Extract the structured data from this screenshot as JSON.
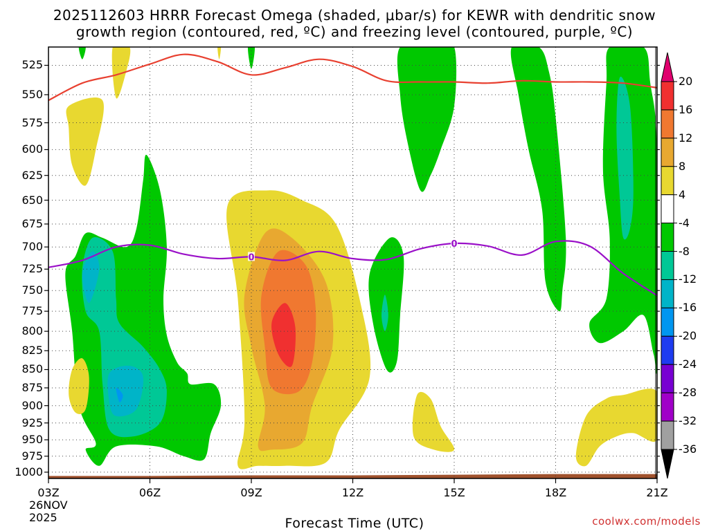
{
  "title": {
    "line1": "2025112603 HRRR Forecast Omega (shaded, μbar/s) for KEWR with dendritic snow",
    "line2": "growth region (contoured, red, ºC) and freezing level (contoured, purple, ºC)"
  },
  "credit": "coolwx.com/models",
  "chart_data": {
    "type": "heatmap",
    "title": "2025112603 HRRR Forecast Omega (shaded, μbar/s) for KEWR with dendritic snow growth region (contoured, red, ºC) and freezing level (contoured, purple, ºC)",
    "xlabel": "Forecast Time (UTC)",
    "ylabel": "",
    "x_ticks": [
      "03Z",
      "06Z",
      "09Z",
      "12Z",
      "15Z",
      "18Z",
      "21Z"
    ],
    "x_hours": [
      3,
      6,
      9,
      12,
      15,
      18,
      21
    ],
    "start_date": [
      "26NOV",
      "2025"
    ],
    "y_ticks": [
      525,
      550,
      575,
      600,
      625,
      650,
      675,
      700,
      725,
      750,
      775,
      800,
      825,
      850,
      875,
      900,
      925,
      950,
      975,
      1000
    ],
    "y_log": true,
    "ylim": [
      1010,
      510
    ],
    "xlim": [
      3,
      21
    ],
    "grid": true,
    "colorbar": {
      "levels": [
        "20",
        "16",
        "12",
        "8",
        "4",
        "-4",
        "-8",
        "-12",
        "-16",
        "-20",
        "-24",
        "-28",
        "-32",
        "-36"
      ],
      "colors": [
        "#e0006e",
        "#f03030",
        "#f07830",
        "#e8a830",
        "#e8d830",
        "#ffffff",
        "#00c800",
        "#00c896",
        "#00b4c8",
        "#0096f0",
        "#1e3cf0",
        "#7800d2",
        "#a000c8",
        "#a0a0a0",
        "#000000"
      ]
    },
    "omega_regions": [
      {
        "level": "4",
        "color": "#e8d830",
        "points": [
          [
            8.3,
            655
          ],
          [
            9.5,
            640
          ],
          [
            10.5,
            650
          ],
          [
            11.5,
            675
          ],
          [
            12.2,
            760
          ],
          [
            12.5,
            860
          ],
          [
            11.6,
            935
          ],
          [
            11.2,
            985
          ],
          [
            10.0,
            990
          ],
          [
            9.2,
            990
          ],
          [
            8.6,
            990
          ],
          [
            8.8,
            920
          ],
          [
            8.6,
            760
          ]
        ]
      },
      {
        "level": "8",
        "color": "#e8a830",
        "points": [
          [
            8.8,
            755
          ],
          [
            9.4,
            685
          ],
          [
            10.2,
            690
          ],
          [
            11.2,
            740
          ],
          [
            11.4,
            820
          ],
          [
            10.8,
            900
          ],
          [
            10.5,
            955
          ],
          [
            9.6,
            965
          ],
          [
            9.2,
            960
          ],
          [
            9.4,
            900
          ],
          [
            9.0,
            820
          ]
        ]
      },
      {
        "level": "12",
        "color": "#f07830",
        "points": [
          [
            9.3,
            755
          ],
          [
            9.8,
            705
          ],
          [
            10.6,
            720
          ],
          [
            10.9,
            770
          ],
          [
            10.8,
            840
          ],
          [
            10.4,
            880
          ],
          [
            9.6,
            875
          ],
          [
            9.4,
            820
          ]
        ]
      },
      {
        "level": "16",
        "color": "#f03030",
        "points": [
          [
            9.6,
            790
          ],
          [
            10.0,
            765
          ],
          [
            10.3,
            795
          ],
          [
            10.2,
            845
          ],
          [
            9.8,
            830
          ]
        ]
      },
      {
        "level": "-4",
        "color": "#00c800",
        "points": [
          [
            3.8,
            710
          ],
          [
            4.1,
            685
          ],
          [
            4.6,
            690
          ],
          [
            5.3,
            700
          ],
          [
            5.6,
            680
          ],
          [
            5.8,
            630
          ],
          [
            5.9,
            605
          ],
          [
            6.3,
            640
          ],
          [
            6.5,
            700
          ],
          [
            6.4,
            760
          ],
          [
            6.5,
            805
          ],
          [
            6.8,
            840
          ],
          [
            7.1,
            855
          ],
          [
            7.2,
            870
          ],
          [
            7.9,
            870
          ],
          [
            8.1,
            900
          ],
          [
            7.8,
            940
          ],
          [
            7.6,
            980
          ],
          [
            7.0,
            975
          ],
          [
            6.2,
            960
          ],
          [
            5.0,
            960
          ],
          [
            4.5,
            990
          ],
          [
            4.1,
            965
          ],
          [
            4.4,
            955
          ],
          [
            3.9,
            900
          ],
          [
            3.7,
            800
          ],
          [
            3.5,
            730
          ]
        ]
      },
      {
        "level": "-8",
        "color": "#00c896",
        "points": [
          [
            4.0,
            725
          ],
          [
            4.3,
            690
          ],
          [
            4.9,
            705
          ],
          [
            5.0,
            760
          ],
          [
            5.1,
            790
          ],
          [
            5.8,
            820
          ],
          [
            6.3,
            850
          ],
          [
            6.5,
            880
          ],
          [
            6.3,
            925
          ],
          [
            5.5,
            945
          ],
          [
            4.8,
            935
          ],
          [
            4.6,
            870
          ],
          [
            4.5,
            800
          ],
          [
            4.1,
            775
          ]
        ]
      },
      {
        "level": "-12",
        "color": "#00b4c8",
        "points": [
          [
            4.0,
            730
          ],
          [
            4.3,
            705
          ],
          [
            4.5,
            725
          ],
          [
            4.2,
            765
          ]
        ]
      },
      {
        "level": "-12",
        "color": "#00b4c8",
        "points": [
          [
            4.8,
            855
          ],
          [
            5.4,
            845
          ],
          [
            5.8,
            860
          ],
          [
            5.6,
            905
          ],
          [
            5.0,
            915
          ],
          [
            4.8,
            895
          ]
        ]
      },
      {
        "level": "-16",
        "color": "#0096f0",
        "points": [
          [
            5.0,
            875
          ],
          [
            5.2,
            885
          ],
          [
            5.1,
            895
          ]
        ]
      },
      {
        "level": "-4",
        "color": "#00c800",
        "points": [
          [
            13.1,
            690
          ],
          [
            13.5,
            710
          ],
          [
            13.4,
            780
          ],
          [
            13.3,
            840
          ],
          [
            13.0,
            850
          ],
          [
            12.6,
            790
          ],
          [
            12.5,
            730
          ]
        ]
      },
      {
        "level": "-8",
        "color": "#00c896",
        "points": [
          [
            12.95,
            755
          ],
          [
            13.05,
            780
          ],
          [
            12.95,
            800
          ],
          [
            12.85,
            780
          ]
        ]
      },
      {
        "level": "-4",
        "color": "#00c800",
        "points": [
          [
            14.4,
            510
          ],
          [
            15.0,
            510
          ],
          [
            15.0,
            560
          ],
          [
            14.6,
            600
          ],
          [
            14.3,
            625
          ],
          [
            14.0,
            640
          ],
          [
            13.6,
            590
          ],
          [
            13.4,
            550
          ],
          [
            13.4,
            510
          ]
        ]
      },
      {
        "level": "-4",
        "color": "#00c800",
        "points": [
          [
            16.7,
            510
          ],
          [
            17.5,
            510
          ],
          [
            17.8,
            530
          ],
          [
            18.0,
            570
          ],
          [
            18.3,
            690
          ],
          [
            18.2,
            750
          ],
          [
            18.1,
            775
          ],
          [
            17.7,
            740
          ],
          [
            17.6,
            660
          ],
          [
            17.2,
            600
          ],
          [
            16.9,
            550
          ]
        ]
      },
      {
        "level": "-4",
        "color": "#00c800",
        "points": [
          [
            19.6,
            510
          ],
          [
            20.6,
            510
          ],
          [
            20.8,
            540
          ],
          [
            21.0,
            600
          ],
          [
            21.0,
            835
          ],
          [
            20.9,
            830
          ],
          [
            20.6,
            780
          ],
          [
            20.0,
            800
          ],
          [
            19.3,
            815
          ],
          [
            19.0,
            790
          ],
          [
            19.5,
            760
          ],
          [
            19.6,
            690
          ],
          [
            19.4,
            620
          ],
          [
            19.5,
            540
          ]
        ]
      },
      {
        "level": "-8",
        "color": "#00c896",
        "points": [
          [
            19.9,
            535
          ],
          [
            20.2,
            560
          ],
          [
            20.3,
            640
          ],
          [
            20.2,
            680
          ],
          [
            20.0,
            690
          ],
          [
            19.9,
            650
          ],
          [
            19.8,
            580
          ]
        ]
      },
      {
        "level": "-4",
        "color": "#00c800",
        "points": [
          [
            3.9,
            510
          ],
          [
            4.1,
            510
          ],
          [
            4.0,
            520
          ]
        ]
      },
      {
        "level": "-4",
        "color": "#00c800",
        "points": [
          [
            8.9,
            510
          ],
          [
            9.1,
            510
          ],
          [
            9.0,
            528
          ]
        ]
      },
      {
        "level": "4",
        "color": "#e8d830",
        "points": [
          [
            3.6,
            560
          ],
          [
            4.6,
            555
          ],
          [
            4.4,
            600
          ],
          [
            4.1,
            635
          ],
          [
            3.7,
            615
          ],
          [
            3.6,
            580
          ]
        ]
      },
      {
        "level": "4",
        "color": "#e8d830",
        "points": [
          [
            4.9,
            510
          ],
          [
            5.4,
            510
          ],
          [
            5.3,
            530
          ],
          [
            5.0,
            553
          ]
        ]
      },
      {
        "level": "4",
        "color": "#e8d830",
        "points": [
          [
            8.0,
            510
          ],
          [
            8.1,
            510
          ],
          [
            8.05,
            520
          ]
        ]
      },
      {
        "level": "4",
        "color": "#e8d830",
        "points": [
          [
            3.7,
            850
          ],
          [
            4.0,
            835
          ],
          [
            4.2,
            860
          ],
          [
            4.1,
            905
          ],
          [
            3.8,
            910
          ],
          [
            3.6,
            885
          ]
        ]
      },
      {
        "level": "4",
        "color": "#e8d830",
        "points": [
          [
            13.9,
            885
          ],
          [
            14.3,
            890
          ],
          [
            14.6,
            930
          ],
          [
            15.0,
            965
          ],
          [
            14.4,
            965
          ],
          [
            13.8,
            945
          ]
        ]
      },
      {
        "level": "4",
        "color": "#e8d830",
        "points": [
          [
            18.9,
            915
          ],
          [
            19.5,
            890
          ],
          [
            20.0,
            885
          ],
          [
            21.0,
            880
          ],
          [
            21.0,
            950
          ],
          [
            20.3,
            940
          ],
          [
            19.8,
            945
          ],
          [
            19.3,
            960
          ],
          [
            18.9,
            990
          ],
          [
            18.6,
            975
          ]
        ]
      }
    ],
    "snow_growth_contour": {
      "color": "#e84030",
      "points": [
        [
          3,
          555
        ],
        [
          4,
          540
        ],
        [
          5,
          533
        ],
        [
          6,
          524
        ],
        [
          7,
          516
        ],
        [
          8,
          522
        ],
        [
          9,
          533
        ],
        [
          10,
          527
        ],
        [
          11,
          520
        ],
        [
          12,
          526
        ],
        [
          13,
          538
        ],
        [
          14,
          539
        ],
        [
          15,
          539
        ],
        [
          16,
          540
        ],
        [
          17,
          538
        ],
        [
          18,
          539
        ],
        [
          19,
          539
        ],
        [
          20,
          540
        ],
        [
          21,
          544
        ]
      ]
    },
    "freezing_level": {
      "color": "#9a10c8",
      "label": "0",
      "label_hours": [
        9,
        15
      ],
      "points": [
        [
          3,
          723
        ],
        [
          4,
          715
        ],
        [
          5,
          700
        ],
        [
          6,
          698
        ],
        [
          7,
          708
        ],
        [
          8,
          713
        ],
        [
          9,
          711
        ],
        [
          10,
          715
        ],
        [
          11,
          705
        ],
        [
          12,
          713
        ],
        [
          13,
          714
        ],
        [
          14,
          702
        ],
        [
          15,
          696
        ],
        [
          16,
          699
        ],
        [
          17,
          709
        ],
        [
          18,
          694
        ],
        [
          19,
          699
        ],
        [
          20,
          730
        ],
        [
          21,
          756
        ]
      ]
    },
    "terrain": {
      "color": "#a0522d",
      "points": [
        [
          3,
          1006
        ],
        [
          6,
          1006
        ],
        [
          9,
          1005
        ],
        [
          12,
          1005
        ],
        [
          15,
          1004
        ],
        [
          18,
          1003
        ],
        [
          21,
          1003
        ]
      ]
    }
  }
}
